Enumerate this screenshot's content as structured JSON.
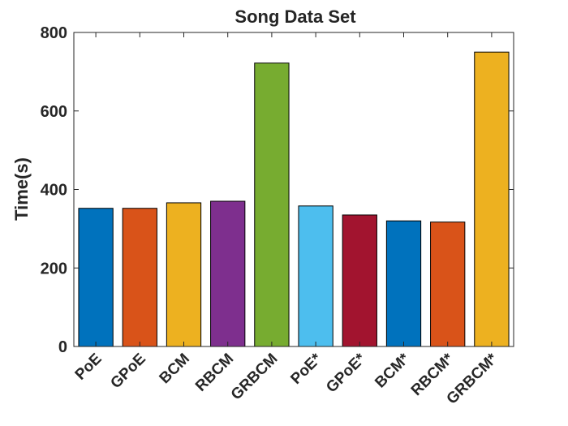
{
  "chart_data": {
    "type": "bar",
    "title": "Song Data Set",
    "xlabel": "",
    "ylabel": "Time(s)",
    "ylim": [
      0,
      800
    ],
    "yticks": [
      0,
      200,
      400,
      600,
      800
    ],
    "categories": [
      "PoE",
      "GPoE",
      "BCM",
      "RBCM",
      "GRBCM",
      "PoE*",
      "GPoE*",
      "BCM*",
      "RBCM*",
      "GRBCM*"
    ],
    "values": [
      352,
      352,
      366,
      370,
      722,
      358,
      335,
      320,
      317,
      750
    ],
    "colors": [
      "#0072BD",
      "#D95319",
      "#EDB120",
      "#7E2F8E",
      "#77AC30",
      "#4DBEEE",
      "#A2142F",
      "#0072BD",
      "#D95319",
      "#EDB120"
    ],
    "grid": false
  }
}
